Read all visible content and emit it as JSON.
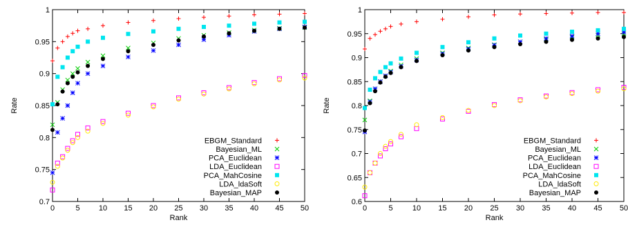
{
  "chart_data": [
    {
      "type": "scatter",
      "xlabel": "Rank",
      "ylabel": "Rate",
      "xlim": [
        0,
        50
      ],
      "ylim": [
        0.7,
        1.0
      ],
      "xticks": [
        "0",
        "5",
        "10",
        "15",
        "20",
        "25",
        "30",
        "35",
        "40",
        "45",
        "50"
      ],
      "yticks": [
        "0.7",
        "0.75",
        "0.8",
        "0.85",
        "0.9",
        "0.95",
        "1"
      ],
      "grid": false,
      "legend_position": "bottom-right",
      "series": [
        {
          "name": "EBGM_Standard",
          "color": "#ff0000",
          "marker": "plus",
          "points": [
            [
              0,
              0.92
            ],
            [
              1,
              0.94
            ],
            [
              2,
              0.95
            ],
            [
              3,
              0.958
            ],
            [
              4,
              0.963
            ],
            [
              5,
              0.967
            ],
            [
              7,
              0.97
            ],
            [
              10,
              0.975
            ],
            [
              15,
              0.98
            ],
            [
              20,
              0.983
            ],
            [
              25,
              0.986
            ],
            [
              30,
              0.988
            ],
            [
              35,
              0.99
            ],
            [
              40,
              0.992
            ],
            [
              45,
              0.993
            ],
            [
              50,
              0.994
            ]
          ]
        },
        {
          "name": "Bayesian_ML",
          "color": "#00cc00",
          "marker": "cross",
          "points": [
            [
              0,
              0.82
            ],
            [
              1,
              0.855
            ],
            [
              2,
              0.875
            ],
            [
              3,
              0.89
            ],
            [
              4,
              0.9
            ],
            [
              5,
              0.908
            ],
            [
              7,
              0.918
            ],
            [
              10,
              0.928
            ],
            [
              15,
              0.94
            ],
            [
              20,
              0.948
            ],
            [
              25,
              0.955
            ],
            [
              30,
              0.96
            ],
            [
              35,
              0.964
            ],
            [
              40,
              0.968
            ],
            [
              45,
              0.971
            ],
            [
              50,
              0.972
            ]
          ]
        },
        {
          "name": "PCA_Euclidean",
          "color": "#0000ff",
          "marker": "asterisk",
          "points": [
            [
              0,
              0.745
            ],
            [
              1,
              0.808
            ],
            [
              2,
              0.83
            ],
            [
              3,
              0.85
            ],
            [
              4,
              0.87
            ],
            [
              5,
              0.885
            ],
            [
              7,
              0.9
            ],
            [
              10,
              0.912
            ],
            [
              15,
              0.926
            ],
            [
              20,
              0.936
            ],
            [
              25,
              0.945
            ],
            [
              30,
              0.953
            ],
            [
              35,
              0.96
            ],
            [
              40,
              0.966
            ],
            [
              45,
              0.97
            ],
            [
              50,
              0.973
            ]
          ]
        },
        {
          "name": "LDA_Euclidean",
          "color": "#ff00ff",
          "marker": "square-open",
          "points": [
            [
              0,
              0.718
            ],
            [
              1,
              0.76
            ],
            [
              2,
              0.77
            ],
            [
              3,
              0.783
            ],
            [
              4,
              0.795
            ],
            [
              5,
              0.805
            ],
            [
              7,
              0.815
            ],
            [
              10,
              0.825
            ],
            [
              15,
              0.838
            ],
            [
              20,
              0.85
            ],
            [
              25,
              0.862
            ],
            [
              30,
              0.87
            ],
            [
              35,
              0.878
            ],
            [
              40,
              0.886
            ],
            [
              45,
              0.892
            ],
            [
              50,
              0.897
            ]
          ]
        },
        {
          "name": "PCA_MahCosine",
          "color": "#00e5ee",
          "marker": "square-filled",
          "points": [
            [
              0,
              0.852
            ],
            [
              1,
              0.895
            ],
            [
              2,
              0.91
            ],
            [
              3,
              0.925
            ],
            [
              4,
              0.935
            ],
            [
              5,
              0.942
            ],
            [
              7,
              0.95
            ],
            [
              10,
              0.956
            ],
            [
              15,
              0.962
            ],
            [
              20,
              0.966
            ],
            [
              25,
              0.97
            ],
            [
              30,
              0.973
            ],
            [
              35,
              0.975
            ],
            [
              40,
              0.978
            ],
            [
              45,
              0.98
            ],
            [
              50,
              0.981
            ]
          ]
        },
        {
          "name": "LDA_ldaSoft",
          "color": "#ffea00",
          "marker": "circle-open",
          "points": [
            [
              0,
              0.73
            ],
            [
              1,
              0.755
            ],
            [
              2,
              0.768
            ],
            [
              3,
              0.78
            ],
            [
              4,
              0.792
            ],
            [
              5,
              0.8
            ],
            [
              7,
              0.81
            ],
            [
              10,
              0.822
            ],
            [
              15,
              0.835
            ],
            [
              20,
              0.848
            ],
            [
              25,
              0.86
            ],
            [
              30,
              0.868
            ],
            [
              35,
              0.876
            ],
            [
              40,
              0.884
            ],
            [
              45,
              0.89
            ],
            [
              50,
              0.893
            ]
          ]
        },
        {
          "name": "Bayesian_MAP",
          "color": "#000000",
          "marker": "circle-filled",
          "points": [
            [
              0,
              0.812
            ],
            [
              1,
              0.852
            ],
            [
              2,
              0.872
            ],
            [
              3,
              0.885
            ],
            [
              4,
              0.895
            ],
            [
              5,
              0.902
            ],
            [
              7,
              0.912
            ],
            [
              10,
              0.923
            ],
            [
              15,
              0.935
            ],
            [
              20,
              0.945
            ],
            [
              25,
              0.952
            ],
            [
              30,
              0.958
            ],
            [
              35,
              0.963
            ],
            [
              40,
              0.967
            ],
            [
              45,
              0.97
            ],
            [
              50,
              0.972
            ]
          ]
        }
      ]
    },
    {
      "type": "scatter",
      "xlabel": "Rank",
      "ylabel": "Rate",
      "xlim": [
        0,
        50
      ],
      "ylim": [
        0.6,
        1.0
      ],
      "xticks": [
        "0",
        "5",
        "10",
        "15",
        "20",
        "25",
        "30",
        "35",
        "40",
        "45",
        "50"
      ],
      "yticks": [
        "0.6",
        "0.65",
        "0.7",
        "0.75",
        "0.8",
        "0.85",
        "0.9",
        "0.95",
        "1"
      ],
      "grid": false,
      "legend_position": "bottom-right",
      "series": [
        {
          "name": "EBGM_Standard",
          "color": "#ff0000",
          "marker": "plus",
          "points": [
            [
              0,
              0.918
            ],
            [
              1,
              0.94
            ],
            [
              2,
              0.948
            ],
            [
              3,
              0.955
            ],
            [
              4,
              0.96
            ],
            [
              5,
              0.965
            ],
            [
              7,
              0.97
            ],
            [
              10,
              0.975
            ],
            [
              15,
              0.98
            ],
            [
              20,
              0.985
            ],
            [
              25,
              0.989
            ],
            [
              30,
              0.991
            ],
            [
              35,
              0.992
            ],
            [
              40,
              0.993
            ],
            [
              45,
              0.994
            ],
            [
              50,
              0.994
            ]
          ]
        },
        {
          "name": "Bayesian_ML",
          "color": "#00cc00",
          "marker": "cross",
          "points": [
            [
              0,
              0.77
            ],
            [
              1,
              0.81
            ],
            [
              2,
              0.835
            ],
            [
              3,
              0.85
            ],
            [
              4,
              0.862
            ],
            [
              5,
              0.872
            ],
            [
              7,
              0.885
            ],
            [
              10,
              0.898
            ],
            [
              15,
              0.91
            ],
            [
              20,
              0.92
            ],
            [
              25,
              0.927
            ],
            [
              30,
              0.933
            ],
            [
              35,
              0.938
            ],
            [
              40,
              0.943
            ],
            [
              45,
              0.947
            ],
            [
              50,
              0.95
            ]
          ]
        },
        {
          "name": "PCA_Euclidean",
          "color": "#0000ff",
          "marker": "asterisk",
          "points": [
            [
              0,
              0.745
            ],
            [
              1,
              0.808
            ],
            [
              2,
              0.835
            ],
            [
              3,
              0.85
            ],
            [
              4,
              0.862
            ],
            [
              5,
              0.87
            ],
            [
              7,
              0.882
            ],
            [
              10,
              0.895
            ],
            [
              15,
              0.908
            ],
            [
              20,
              0.918
            ],
            [
              25,
              0.926
            ],
            [
              30,
              0.933
            ],
            [
              35,
              0.94
            ],
            [
              40,
              0.945
            ],
            [
              45,
              0.95
            ],
            [
              50,
              0.953
            ]
          ]
        },
        {
          "name": "LDA_Euclidean",
          "color": "#ff00ff",
          "marker": "square-open",
          "points": [
            [
              0,
              0.612
            ],
            [
              1,
              0.66
            ],
            [
              2,
              0.68
            ],
            [
              3,
              0.695
            ],
            [
              4,
              0.71
            ],
            [
              5,
              0.72
            ],
            [
              7,
              0.735
            ],
            [
              10,
              0.752
            ],
            [
              15,
              0.772
            ],
            [
              20,
              0.788
            ],
            [
              25,
              0.802
            ],
            [
              30,
              0.812
            ],
            [
              35,
              0.82
            ],
            [
              40,
              0.827
            ],
            [
              45,
              0.833
            ],
            [
              50,
              0.838
            ]
          ]
        },
        {
          "name": "PCA_MahCosine",
          "color": "#00e5ee",
          "marker": "square-filled",
          "points": [
            [
              0,
              0.795
            ],
            [
              1,
              0.833
            ],
            [
              2,
              0.857
            ],
            [
              3,
              0.87
            ],
            [
              4,
              0.88
            ],
            [
              5,
              0.888
            ],
            [
              7,
              0.898
            ],
            [
              10,
              0.91
            ],
            [
              15,
              0.922
            ],
            [
              20,
              0.932
            ],
            [
              25,
              0.94
            ],
            [
              30,
              0.946
            ],
            [
              35,
              0.95
            ],
            [
              40,
              0.954
            ],
            [
              45,
              0.957
            ],
            [
              50,
              0.96
            ]
          ]
        },
        {
          "name": "LDA_ldaSoft",
          "color": "#ffea00",
          "marker": "circle-open",
          "points": [
            [
              0,
              0.63
            ],
            [
              1,
              0.66
            ],
            [
              2,
              0.68
            ],
            [
              3,
              0.7
            ],
            [
              4,
              0.715
            ],
            [
              5,
              0.725
            ],
            [
              7,
              0.74
            ],
            [
              10,
              0.76
            ],
            [
              15,
              0.775
            ],
            [
              20,
              0.79
            ],
            [
              25,
              0.8
            ],
            [
              30,
              0.81
            ],
            [
              35,
              0.818
            ],
            [
              40,
              0.825
            ],
            [
              45,
              0.83
            ],
            [
              50,
              0.835
            ]
          ]
        },
        {
          "name": "Bayesian_MAP",
          "color": "#000000",
          "marker": "circle-filled",
          "points": [
            [
              0,
              0.748
            ],
            [
              1,
              0.805
            ],
            [
              2,
              0.83
            ],
            [
              3,
              0.848
            ],
            [
              4,
              0.86
            ],
            [
              5,
              0.868
            ],
            [
              7,
              0.88
            ],
            [
              10,
              0.893
            ],
            [
              15,
              0.905
            ],
            [
              20,
              0.915
            ],
            [
              25,
              0.922
            ],
            [
              30,
              0.928
            ],
            [
              35,
              0.933
            ],
            [
              40,
              0.937
            ],
            [
              45,
              0.94
            ],
            [
              50,
              0.943
            ]
          ]
        }
      ]
    }
  ]
}
